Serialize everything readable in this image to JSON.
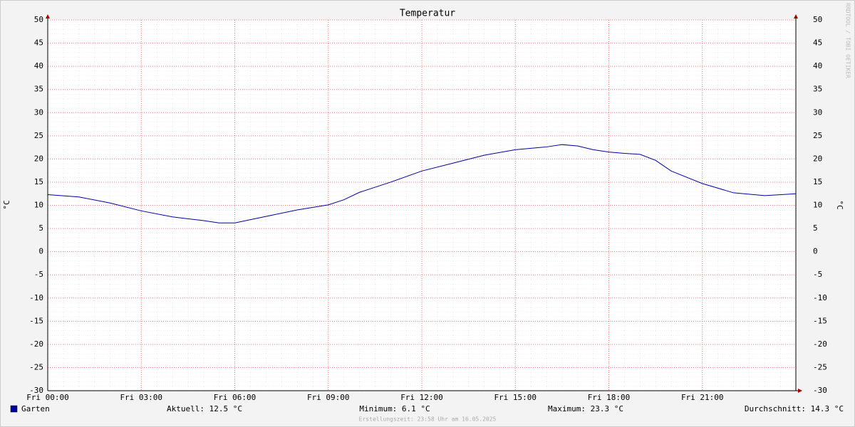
{
  "chart_data": {
    "type": "line",
    "title": "Temperatur",
    "y_label": "°C",
    "y2_label": "°C",
    "watermark": "RRDTOOL / TOBI OETIKER",
    "x": [
      0,
      1,
      2,
      3,
      4,
      5,
      5.5,
      6,
      7,
      8,
      9,
      9.5,
      10,
      11,
      12,
      13,
      14,
      15,
      16,
      16.5,
      17,
      17.5,
      18,
      18.5,
      19,
      19.5,
      20,
      21,
      22,
      23,
      24
    ],
    "series": [
      {
        "name": "Garten",
        "color": "#0000a0",
        "values": [
          12.3,
          11.8,
          10.5,
          8.8,
          7.5,
          6.7,
          6.2,
          6.2,
          7.6,
          9.0,
          10.1,
          11.2,
          12.8,
          15.0,
          17.4,
          19.1,
          20.8,
          22.0,
          22.6,
          23.1,
          22.8,
          22.0,
          21.5,
          21.2,
          21.0,
          19.7,
          17.4,
          14.7,
          12.7,
          12.1,
          12.5
        ]
      }
    ],
    "legend_stats": [
      "Aktuell: 12.5 °C",
      "Minimum: 6.1 °C",
      "Maximum: 23.3 °C",
      "Durchschnitt: 14.3 °C"
    ],
    "footer": "Erstellungszeit: 23:58 Uhr am 16.05.2025",
    "xlim": [
      0,
      24
    ],
    "xticks": [
      {
        "value": 0,
        "label": "Fri 00:00"
      },
      {
        "value": 3,
        "label": "Fri 03:00"
      },
      {
        "value": 6,
        "label": "Fri 06:00"
      },
      {
        "value": 9,
        "label": "Fri 09:00"
      },
      {
        "value": 12,
        "label": "Fri 12:00"
      },
      {
        "value": 15,
        "label": "Fri 15:00"
      },
      {
        "value": 18,
        "label": "Fri 18:00"
      },
      {
        "value": 21,
        "label": "Fri 21:00"
      }
    ],
    "ylim": [
      -30,
      50
    ],
    "yticks": [
      -30,
      -25,
      -20,
      -15,
      -10,
      -5,
      0,
      5,
      10,
      15,
      20,
      25,
      30,
      35,
      40,
      45,
      50
    ],
    "grid": true
  }
}
